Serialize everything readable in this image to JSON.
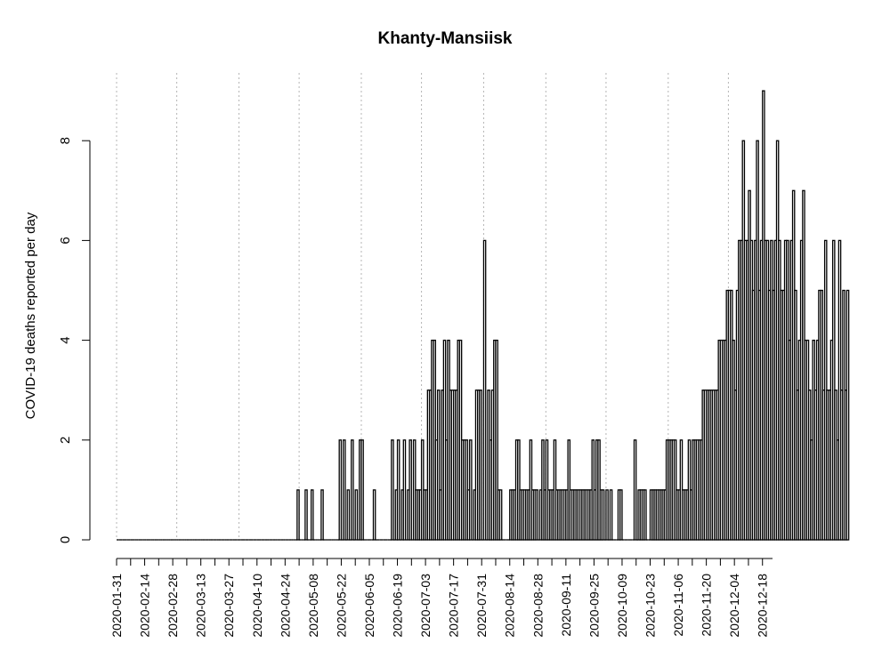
{
  "chart_data": {
    "type": "bar",
    "title": "Khanty-Mansiisk",
    "xlabel": "",
    "ylabel": "COVID-19 deaths reported per day",
    "x_start": "2020-01-31",
    "x_end": "2020-12-23",
    "ylim": [
      0,
      9
    ],
    "yticks": [
      0,
      2,
      4,
      6,
      8
    ],
    "xtick_labels": [
      "2020-01-31",
      "2020-02-14",
      "2020-02-28",
      "2020-03-13",
      "2020-03-27",
      "2020-04-10",
      "2020-04-24",
      "2020-05-08",
      "2020-05-22",
      "2020-06-05",
      "2020-06-19",
      "2020-07-03",
      "2020-07-17",
      "2020-07-31",
      "2020-08-14",
      "2020-08-28",
      "2020-09-11",
      "2020-09-25",
      "2020-10-09",
      "2020-10-23",
      "2020-11-06",
      "2020-11-20",
      "2020-12-04",
      "2020-12-18"
    ],
    "grid_dates": [
      "2020-01-31",
      "2020-03-01",
      "2020-04-01",
      "2020-05-01",
      "2020-06-01",
      "2020-07-01",
      "2020-08-01",
      "2020-09-01",
      "2020-10-01",
      "2020-11-01",
      "2020-12-01"
    ],
    "grid": "vertical dotted at month starts",
    "series": [
      {
        "values": [
          0,
          0,
          0,
          0,
          0,
          0,
          0,
          0,
          0,
          0,
          0,
          0,
          0,
          0,
          0,
          0,
          0,
          0,
          0,
          0,
          0,
          0,
          0,
          0,
          0,
          0,
          0,
          0,
          0,
          0,
          0,
          0,
          0,
          0,
          0,
          0,
          0,
          0,
          0,
          0,
          0,
          0,
          0,
          0,
          0,
          0,
          0,
          0,
          0,
          0,
          0,
          0,
          0,
          0,
          0,
          0,
          0,
          0,
          0,
          0,
          0,
          0,
          0,
          0,
          0,
          0,
          0,
          0,
          0,
          0,
          0,
          0,
          0,
          0,
          0,
          0,
          0,
          0,
          0,
          0,
          0,
          0,
          0,
          0,
          0,
          0,
          0,
          0,
          0,
          0,
          1,
          0,
          0,
          0,
          1,
          0,
          0,
          1,
          0,
          0,
          0,
          0,
          1,
          0,
          0,
          0,
          0,
          0,
          0,
          0,
          0,
          2,
          0,
          2,
          0,
          1,
          0,
          2,
          0,
          1,
          0,
          2,
          2,
          0,
          0,
          0,
          0,
          0,
          1,
          0,
          0,
          0,
          0,
          0,
          0,
          0,
          0,
          2,
          0,
          1,
          2,
          0,
          1,
          2,
          0,
          1,
          2,
          0,
          2,
          1,
          1,
          1,
          2,
          1,
          1,
          3,
          3,
          4,
          4,
          2,
          3,
          1,
          3,
          4,
          2,
          4,
          3,
          3,
          3,
          3,
          4,
          4,
          2,
          2,
          2,
          1,
          2,
          0,
          1,
          3,
          3,
          3,
          0,
          6,
          0,
          3,
          2,
          3,
          4,
          4,
          1,
          1,
          0,
          0,
          0,
          0,
          1,
          1,
          1,
          2,
          2,
          1,
          1,
          1,
          1,
          1,
          2,
          1,
          1,
          1,
          0,
          1,
          2,
          1,
          2,
          1,
          1,
          1,
          2,
          1,
          1,
          1,
          1,
          1,
          1,
          2,
          1,
          1,
          1,
          1,
          1,
          1,
          1,
          1,
          1,
          1,
          1,
          2,
          1,
          2,
          2,
          1,
          1,
          0,
          1,
          0,
          1,
          0,
          0,
          0,
          1,
          1,
          0,
          0,
          0,
          0,
          0,
          0,
          2,
          0,
          1,
          1,
          1,
          1,
          0,
          0,
          1,
          1,
          1,
          1,
          1,
          1,
          1,
          1,
          2,
          2,
          2,
          2,
          2,
          1,
          1,
          2,
          1,
          1,
          1,
          2,
          1,
          2,
          2,
          2,
          2,
          2,
          3,
          3,
          3,
          3,
          3,
          3,
          3,
          3,
          4,
          4,
          4,
          4,
          5,
          5,
          5,
          4,
          3,
          5,
          6,
          6,
          8,
          6,
          6,
          7,
          6,
          5,
          6,
          8,
          5,
          6,
          9,
          6,
          6,
          5,
          6,
          5,
          6,
          8,
          6,
          5,
          5,
          6,
          6,
          4,
          6,
          7,
          5,
          3,
          4,
          6,
          7,
          4,
          4,
          3,
          2,
          4,
          3,
          4,
          5,
          5,
          3,
          6,
          3,
          3,
          4,
          6,
          3,
          2,
          6,
          3,
          5,
          3,
          5
        ]
      }
    ]
  }
}
